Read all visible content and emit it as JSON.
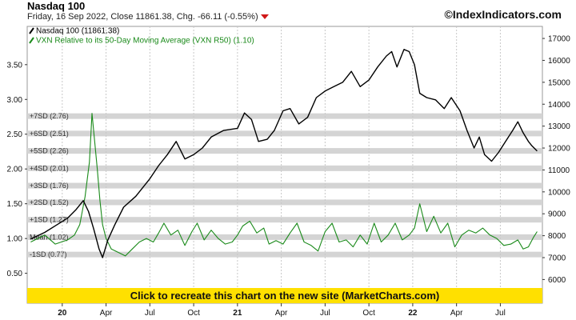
{
  "header": {
    "title": "Nasdaq 100",
    "subtitle": "Friday, 16 Sep 2022, Close 11861.38, Chg. -66.11 (-0.55%)",
    "credit": "©IndexIndicators.com"
  },
  "banner": {
    "label": "Click to recreate this chart on the new site (MarketCharts.com)"
  },
  "colors": {
    "nasdaq": "#000000",
    "vxn": "#1a8a1a",
    "band": "#d4d4d4",
    "banner": "#ffe000",
    "down_arrow": "#d01818"
  },
  "chart_data": {
    "type": "line",
    "x_ticks": [
      "20",
      "Apr",
      "Jul",
      "Oct",
      "21",
      "Apr",
      "Jul",
      "Oct",
      "22",
      "Apr",
      "Jul"
    ],
    "x_ticks_bold": [
      "20",
      "21",
      "22"
    ],
    "x_range": [
      2019.8,
      2022.74
    ],
    "x_tick_positions": [
      2020.0,
      2020.25,
      2020.5,
      2020.75,
      2021.0,
      2021.25,
      2021.5,
      2021.75,
      2022.0,
      2022.25,
      2022.5
    ],
    "left_axis": {
      "ylim": [
        0.3,
        4.05
      ],
      "ticks": [
        0.5,
        1.0,
        1.5,
        2.0,
        2.5,
        3.0,
        3.5
      ],
      "tick_labels": [
        "0.50",
        "1.00",
        "1.50",
        "2.00",
        "2.50",
        "3.00",
        "3.50"
      ]
    },
    "right_axis": {
      "ylim": [
        5650,
        17550
      ],
      "ticks": [
        6000,
        7000,
        8000,
        9000,
        10000,
        11000,
        12000,
        13000,
        14000,
        15000,
        16000,
        17000
      ],
      "tick_labels": [
        "6000",
        "7000",
        "8000",
        "9000",
        "10000",
        "11000",
        "12000",
        "13000",
        "14000",
        "15000",
        "16000",
        "17000"
      ]
    },
    "bands": [
      {
        "label": "+7SD (2.76)",
        "value": 2.76
      },
      {
        "label": "+6SD (2.51)",
        "value": 2.51
      },
      {
        "label": "+5SD (2.26)",
        "value": 2.26
      },
      {
        "label": "+4SD (2.01)",
        "value": 2.01
      },
      {
        "label": "+3SD (1.76)",
        "value": 1.76
      },
      {
        "label": "+2SD (1.52)",
        "value": 1.52
      },
      {
        "label": "+1SD (1.27)",
        "value": 1.27
      },
      {
        "label": "Mean (1.02)",
        "value": 1.02
      },
      {
        "label": "-1SD (0.77)",
        "value": 0.77
      }
    ],
    "series": [
      {
        "name": "Nasdaq 100 (11861.38)",
        "axis": "right",
        "color": "#000000",
        "x": [
          2019.82,
          2019.9,
          2019.96,
          2020.03,
          2020.08,
          2020.12,
          2020.15,
          2020.18,
          2020.21,
          2020.23,
          2020.26,
          2020.3,
          2020.35,
          2020.42,
          2020.5,
          2020.55,
          2020.6,
          2020.65,
          2020.7,
          2020.75,
          2020.8,
          2020.85,
          2020.92,
          2021.0,
          2021.04,
          2021.08,
          2021.12,
          2021.17,
          2021.21,
          2021.26,
          2021.3,
          2021.35,
          2021.4,
          2021.45,
          2021.5,
          2021.55,
          2021.6,
          2021.65,
          2021.7,
          2021.75,
          2021.8,
          2021.85,
          2021.88,
          2021.91,
          2021.95,
          2021.98,
          2022.01,
          2022.04,
          2022.08,
          2022.13,
          2022.18,
          2022.22,
          2022.27,
          2022.31,
          2022.35,
          2022.38,
          2022.41,
          2022.45,
          2022.49,
          2022.53,
          2022.57,
          2022.6,
          2022.63,
          2022.66,
          2022.68,
          2022.71
        ],
        "values": [
          7850,
          8150,
          8450,
          8800,
          9200,
          9600,
          9100,
          8300,
          7400,
          7000,
          7800,
          8500,
          9300,
          9800,
          10600,
          11200,
          11700,
          12300,
          11500,
          11700,
          12000,
          12500,
          12800,
          12900,
          13600,
          13300,
          12300,
          12400,
          12800,
          13700,
          13800,
          13100,
          13400,
          14300,
          14600,
          14800,
          15000,
          15500,
          14800,
          15100,
          15700,
          16200,
          16400,
          15700,
          16500,
          16400,
          15800,
          14500,
          14300,
          14200,
          13800,
          14300,
          13700,
          12800,
          12000,
          12500,
          11700,
          11400,
          11800,
          12300,
          12800,
          13200,
          12700,
          12300,
          12100,
          11861
        ]
      },
      {
        "name": "VXN Relative to its 50-Day Moving Average (VXN R50) (1.10)",
        "axis": "left",
        "color": "#1a8a1a",
        "x": [
          2019.82,
          2019.9,
          2019.96,
          2020.03,
          2020.07,
          2020.1,
          2020.13,
          2020.155,
          2020.17,
          2020.185,
          2020.2,
          2020.215,
          2020.23,
          2020.25,
          2020.28,
          2020.32,
          2020.36,
          2020.4,
          2020.44,
          2020.48,
          2020.52,
          2020.55,
          2020.58,
          2020.62,
          2020.66,
          2020.7,
          2020.74,
          2020.77,
          2020.81,
          2020.85,
          2020.89,
          2020.93,
          2020.97,
          2021.0,
          2021.03,
          2021.07,
          2021.11,
          2021.15,
          2021.18,
          2021.22,
          2021.26,
          2021.3,
          2021.34,
          2021.38,
          2021.42,
          2021.46,
          2021.5,
          2021.54,
          2021.58,
          2021.62,
          2021.66,
          2021.7,
          2021.74,
          2021.78,
          2021.82,
          2021.86,
          2021.9,
          2021.94,
          2021.98,
          2022.01,
          2022.04,
          2022.08,
          2022.12,
          2022.16,
          2022.2,
          2022.24,
          2022.28,
          2022.32,
          2022.36,
          2022.4,
          2022.44,
          2022.48,
          2022.52,
          2022.56,
          2022.6,
          2022.63,
          2022.66,
          2022.69,
          2022.71
        ],
        "values": [
          0.95,
          1.05,
          0.92,
          0.98,
          1.05,
          1.2,
          1.6,
          2.1,
          2.8,
          2.4,
          2.0,
          1.55,
          1.2,
          1.0,
          0.85,
          0.8,
          0.75,
          0.85,
          0.95,
          1.0,
          0.95,
          1.08,
          1.22,
          1.05,
          1.12,
          0.9,
          1.1,
          1.22,
          0.98,
          1.12,
          1.0,
          0.92,
          0.95,
          1.05,
          1.18,
          1.25,
          1.08,
          1.15,
          0.92,
          0.97,
          0.92,
          1.08,
          1.22,
          0.95,
          0.9,
          0.82,
          1.1,
          1.22,
          0.95,
          0.98,
          0.88,
          1.05,
          0.92,
          1.22,
          0.95,
          1.05,
          1.22,
          0.98,
          1.05,
          1.15,
          1.5,
          1.1,
          1.32,
          1.08,
          1.22,
          0.88,
          1.05,
          1.12,
          1.08,
          1.15,
          1.05,
          1.0,
          0.9,
          0.92,
          0.98,
          0.85,
          0.88,
          1.02,
          1.1
        ]
      }
    ]
  }
}
